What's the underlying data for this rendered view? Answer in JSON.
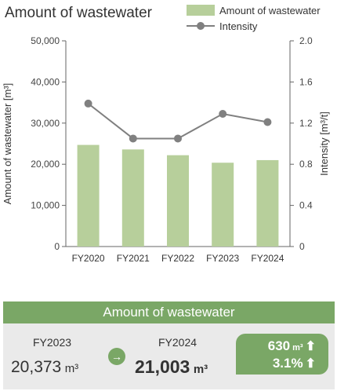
{
  "chart_data": {
    "type": "bar",
    "title": "Amount of wastewater",
    "categories": [
      "FY2020",
      "FY2021",
      "FY2022",
      "FY2023",
      "FY2024"
    ],
    "series": [
      {
        "name": "Amount of wastewater",
        "type": "bar",
        "axis": "left",
        "color": "#b7cf9b",
        "values": [
          24700,
          23600,
          22200,
          20373,
          21003
        ]
      },
      {
        "name": "Intensity",
        "type": "line",
        "axis": "right",
        "color": "#808080",
        "values": [
          1.39,
          1.05,
          1.05,
          1.29,
          1.21
        ]
      }
    ],
    "ylabel": "Amount of wastewater [m³]",
    "y2label": "Intensity [m³/t]",
    "ylim": [
      0,
      50000
    ],
    "y2lim": [
      0,
      2.0
    ],
    "yticks": [
      "0",
      "10,000",
      "20,000",
      "30,000",
      "40,000",
      "50,000"
    ],
    "y2ticks": [
      "0",
      "0.4",
      "0.8",
      "1.2",
      "1.6",
      "2.0"
    ],
    "grid": false,
    "legend_position": "top-right"
  },
  "summary": {
    "header": "Amount of wastewater",
    "prev_label": "FY2023",
    "prev_value": "20,373",
    "curr_label": "FY2024",
    "curr_value": "21,003",
    "unit": "m³",
    "arrow_icon": "right-arrow-icon",
    "delta_amount": "630",
    "delta_unit": "m³",
    "delta_percent": "3.1%",
    "up_icon": "up-arrow-icon"
  }
}
